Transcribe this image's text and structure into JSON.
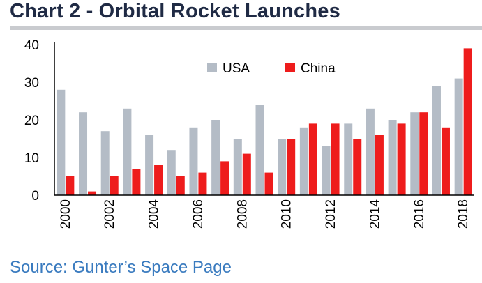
{
  "title": "Chart 2 - Orbital Rocket Launches",
  "source": "Source: Gunter’s Space Page",
  "chart_data": {
    "type": "bar",
    "categories": [
      "2000",
      "2001",
      "2002",
      "2003",
      "2004",
      "2005",
      "2006",
      "2007",
      "2008",
      "2009",
      "2010",
      "2011",
      "2012",
      "2013",
      "2014",
      "2015",
      "2016",
      "2017",
      "2018"
    ],
    "x_tick_labels": [
      "2000",
      "",
      "2002",
      "",
      "2004",
      "",
      "2006",
      "",
      "2008",
      "",
      "2010",
      "",
      "2012",
      "",
      "2014",
      "",
      "2016",
      "",
      "2018"
    ],
    "series": [
      {
        "name": "USA",
        "color": "#b4bcc6",
        "values": [
          28,
          22,
          17,
          23,
          16,
          12,
          18,
          20,
          15,
          24,
          15,
          18,
          13,
          19,
          23,
          20,
          22,
          29,
          31
        ]
      },
      {
        "name": "China",
        "color": "#ee1c1c",
        "values": [
          5,
          1,
          5,
          7,
          8,
          5,
          6,
          9,
          11,
          6,
          15,
          19,
          19,
          15,
          16,
          19,
          22,
          18,
          39
        ]
      }
    ],
    "ylim": [
      0,
      40
    ],
    "yticks": [
      0,
      10,
      20,
      30,
      40
    ],
    "xlabel": "",
    "ylabel": "",
    "grid": false,
    "legend_position": "top-center"
  }
}
